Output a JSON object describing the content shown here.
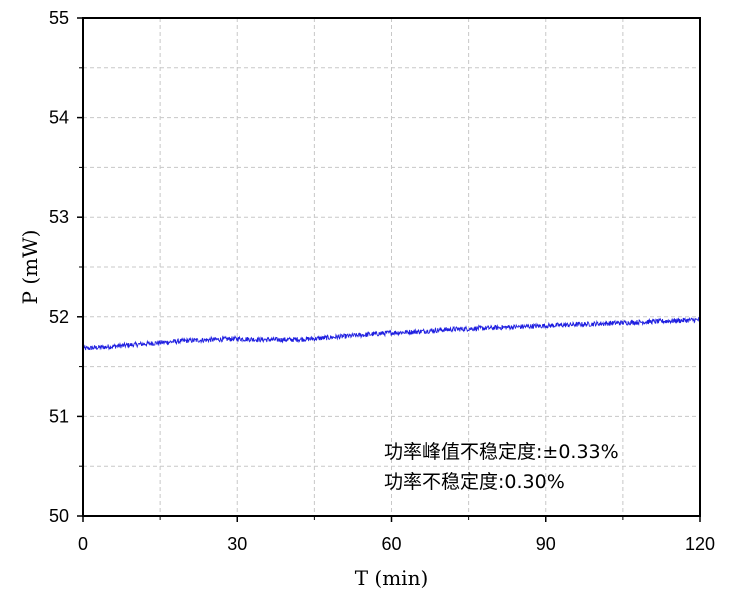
{
  "chart_data": {
    "type": "line",
    "title": "",
    "xlabel": "T (min)",
    "ylabel": "P (mW)",
    "xlim": [
      0,
      120
    ],
    "ylim": [
      50,
      55
    ],
    "xticks": [
      0,
      30,
      60,
      90,
      120
    ],
    "yticks": [
      50,
      51,
      52,
      53,
      54,
      55
    ],
    "grid": true,
    "legend": "none",
    "series": [
      {
        "color": "#1f1fe0",
        "x": [
          0,
          5,
          10,
          15,
          20,
          25,
          30,
          35,
          40,
          45,
          50,
          55,
          60,
          65,
          70,
          75,
          80,
          85,
          90,
          95,
          100,
          105,
          110,
          115,
          120
        ],
        "y": [
          51.68,
          51.7,
          51.72,
          51.74,
          51.76,
          51.77,
          51.78,
          51.77,
          51.77,
          51.78,
          51.8,
          51.82,
          51.84,
          51.85,
          51.87,
          51.88,
          51.89,
          51.9,
          51.91,
          51.92,
          51.93,
          51.94,
          51.95,
          51.96,
          51.97
        ]
      }
    ],
    "annotations": [
      "功率峰值不稳定度:±0.33%",
      "功率不稳定度:0.30%"
    ]
  }
}
